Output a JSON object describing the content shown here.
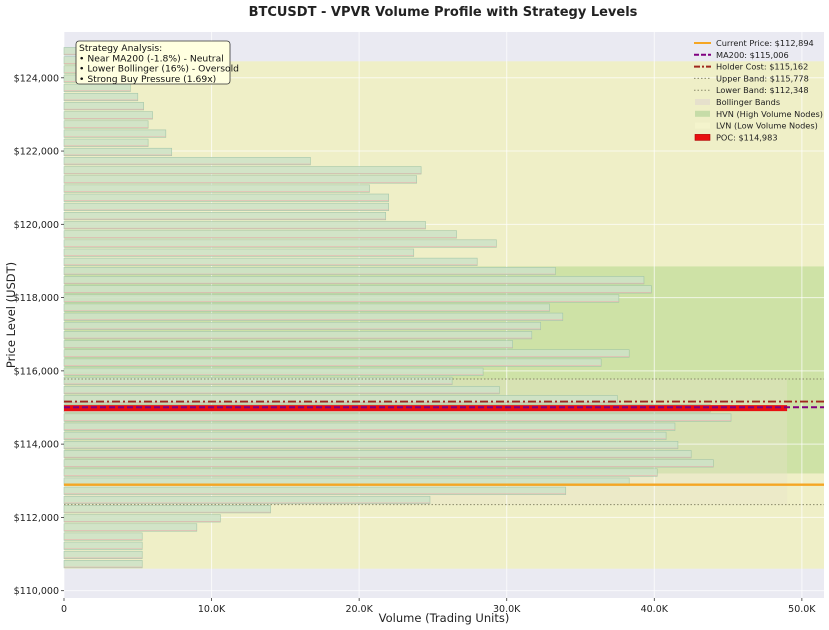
{
  "chart_data": {
    "type": "bar",
    "orientation": "horizontal",
    "title": "BTCUSDT - VPVR Volume Profile with Strategy Levels",
    "xlabel": "Volume (Trading Units)",
    "ylabel": "Price Level (USDT)",
    "xlim": [
      0,
      51500
    ],
    "ylim": [
      109800,
      125250
    ],
    "x_ticks": [
      0,
      10000,
      20000,
      30000,
      40000,
      50000
    ],
    "x_tick_labels": [
      "0",
      "10.0K",
      "20.0K",
      "30.0K",
      "40.0K",
      "50.0K"
    ],
    "y_ticks": [
      110000,
      112000,
      114000,
      116000,
      118000,
      120000,
      122000,
      124000
    ],
    "y_tick_labels": [
      "$110,000",
      "$112,000",
      "$114,000",
      "$116,000",
      "$118,000",
      "$120,000",
      "$122,000",
      "$124,000"
    ],
    "grid": true,
    "legend_position": "top-right",
    "bins": {
      "bottom_price": 110600,
      "bin_height": 250,
      "volumes": [
        5300,
        5300,
        5300,
        5300,
        9000,
        10600,
        14000,
        24800,
        34000,
        38300,
        40200,
        44000,
        42500,
        41600,
        40800,
        41400,
        45200,
        43800,
        37500,
        29500,
        26300,
        28400,
        36400,
        38300,
        30400,
        31700,
        32300,
        33800,
        32900,
        37600,
        39800,
        39300,
        33300,
        28000,
        23700,
        29300,
        26600,
        24500,
        21800,
        22000,
        22000,
        20700,
        23900,
        24200,
        16700,
        7300,
        5700,
        6900,
        5700,
        6000,
        5400,
        5000,
        4500,
        4000,
        5000,
        4500,
        6000
      ]
    },
    "levels": {
      "current_price": 112894,
      "ma200": 115006,
      "holder_cost": 115162,
      "upper_band": 115778,
      "lower_band": 112348,
      "poc": 114983,
      "hvn_range": [
        113200,
        118850
      ],
      "lvn_range": [
        110600,
        124450
      ]
    },
    "legend": [
      {
        "label": "Current Price: $112,894",
        "style": "solid",
        "color": "#f5a623"
      },
      {
        "label": "MA200: $115,006",
        "style": "dashed",
        "color": "#800080"
      },
      {
        "label": "Holder Cost: $115,162",
        "style": "dashdot",
        "color": "#a0281e"
      },
      {
        "label": "Upper Band: $115,778",
        "style": "dotted",
        "color": "#8a8a6a"
      },
      {
        "label": "Lower Band: $112,348",
        "style": "dotted",
        "color": "#8a8a6a"
      },
      {
        "label": "Bollinger Bands",
        "style": "patch",
        "color": "#e6e0cc"
      },
      {
        "label": "HVN (High Volume Nodes)",
        "style": "patch",
        "color": "#c6dca8"
      },
      {
        "label": "LVN (Low Volume Nodes)",
        "style": "patch",
        "color": "#f4f4cc"
      },
      {
        "label": "POC: $114,983",
        "style": "patch",
        "color": "#e81010"
      }
    ],
    "annotation": {
      "title": "Strategy Analysis:",
      "lines": [
        "• Near MA200 (-1.8%) - Neutral",
        "• Lower Bollinger (16%) - Oversold",
        "• Strong Buy Pressure (1.69x)"
      ]
    },
    "colors": {
      "plot_bg": "#eaeaf2",
      "bar_fill": "#cfe3c7",
      "bar_edge": "#9cc2a6",
      "bar_buy_line": "#f0a8a8",
      "hvn_fill": "#b8d890",
      "lvn_fill": "#f0f0c0",
      "band_fill": "#e8e2cc",
      "annotation_bg": "#ffffe0"
    }
  }
}
